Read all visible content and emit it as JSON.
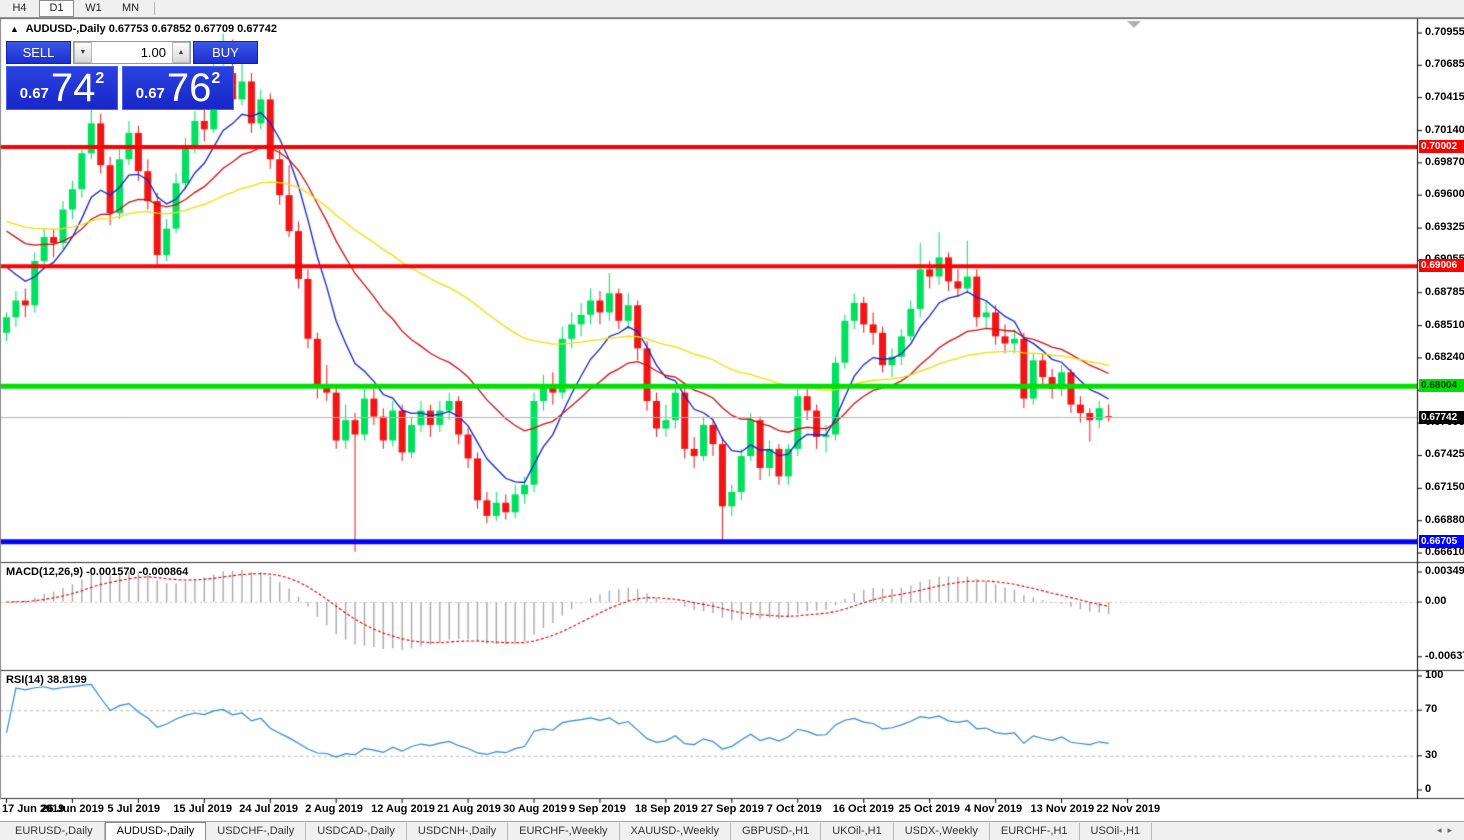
{
  "toolbar": {
    "timeframes": [
      {
        "label": "H4",
        "active": false
      },
      {
        "label": "D1",
        "active": true
      },
      {
        "label": "W1",
        "active": false
      },
      {
        "label": "MN",
        "active": false
      }
    ]
  },
  "title": {
    "collapse": "▲",
    "symbol": "AUDUSD-,Daily",
    "ohlc": "0.67753 0.67852 0.67709 0.67742"
  },
  "trade_panel": {
    "sell_label": "SELL",
    "buy_label": "BUY",
    "volume": "1.00",
    "spin_down": "▼",
    "spin_up": "▲",
    "sell_small": "0.67",
    "sell_big": "74",
    "sell_sup": "2",
    "buy_small": "0.67",
    "buy_big": "76",
    "buy_sup": "2"
  },
  "price_axis": {
    "ticks": [
      "0.70955",
      "0.70685",
      "0.70415",
      "0.70140",
      "0.69870",
      "0.69600",
      "0.69325",
      "0.69055",
      "0.68785",
      "0.68510",
      "0.68240",
      "0.67970",
      "0.67695",
      "0.67425",
      "0.67150",
      "0.66880",
      "0.66610"
    ],
    "badges": [
      {
        "value": "0.70002",
        "bg": "#ff0000",
        "fg": "#ffffff"
      },
      {
        "value": "0.69006",
        "bg": "#ff0000",
        "fg": "#ffffff"
      },
      {
        "value": "0.68004",
        "bg": "#00e000",
        "fg": "#003300"
      },
      {
        "value": "0.67742",
        "bg": "#000000",
        "fg": "#ffffff"
      },
      {
        "value": "0.66705",
        "bg": "#0000ff",
        "fg": "#ffffff"
      }
    ]
  },
  "levels": [
    {
      "price": 0.70002,
      "color": "#ff0000",
      "width": 4
    },
    {
      "price": 0.69006,
      "color": "#ff0000",
      "width": 4
    },
    {
      "price": 0.68004,
      "color": "#00e000",
      "width": 5
    },
    {
      "price": 0.66705,
      "color": "#0000ff",
      "width": 5
    }
  ],
  "current_price": 0.67742,
  "macd": {
    "label": "MACD(12,26,9) -0.001570 -0.000864",
    "fast": 12,
    "slow": 26,
    "signal": 9,
    "axis": [
      "0.00349",
      "0.00",
      "-0.00637"
    ]
  },
  "rsi": {
    "label": "RSI(14) 38.8199",
    "period": 14,
    "levels": [
      70,
      30
    ],
    "axis": [
      "100",
      "70",
      "30",
      "0"
    ]
  },
  "time_axis": {
    "labels": [
      "17 Jun 2019",
      "26 Jun 2019",
      "5 Jul 2019",
      "15 Jul 2019",
      "24 Jul 2019",
      "2 Aug 2019",
      "12 Aug 2019",
      "21 Aug 2019",
      "30 Aug 2019",
      "9 Sep 2019",
      "18 Sep 2019",
      "27 Sep 2019",
      "7 Oct 2019",
      "16 Oct 2019",
      "25 Oct 2019",
      "4 Nov 2019",
      "13 Nov 2019",
      "22 Nov 2019"
    ],
    "candles_per_tick": 7
  },
  "tabs": {
    "items": [
      {
        "label": "EURUSD-,Daily",
        "active": false
      },
      {
        "label": "AUDUSD-,Daily",
        "active": true
      },
      {
        "label": "USDCHF-,Daily",
        "active": false
      },
      {
        "label": "USDCAD-,Daily",
        "active": false
      },
      {
        "label": "USDCNH-,Daily",
        "active": false
      },
      {
        "label": "EURCHF-,Weekly",
        "active": false
      },
      {
        "label": "XAUUSD-,Weekly",
        "active": false
      },
      {
        "label": "GBPUSD-,H1",
        "active": false
      },
      {
        "label": "UKOil-,H1",
        "active": false
      },
      {
        "label": "USDX-,Weekly",
        "active": false
      },
      {
        "label": "EURCHF-,H1",
        "active": false
      },
      {
        "label": "USOil-,H1",
        "active": false
      }
    ],
    "scroll_left": "◂",
    "scroll_right": "▸"
  },
  "colors": {
    "up_candle": "#00e05f",
    "down_candle": "#f21515",
    "ma_fast": "#1122cc",
    "ma_mid": "#cc1111",
    "ma_slow": "#efe000",
    "macd_hist": "#a9a9a9",
    "macd_signal": "#dd0000",
    "rsi_line": "#2e86e0",
    "rsi_level": "#bbbbbb",
    "current_line": "#b4b4b4",
    "scroll_marker": "#b0b0b0"
  },
  "chart_data": {
    "type": "candlestick",
    "symbol": "AUDUSD-",
    "timeframe": "Daily",
    "moving_averages": [
      {
        "color_role": "ma_fast",
        "period": 8,
        "seed_offset": 0.0042
      },
      {
        "color_role": "ma_mid",
        "period": 21,
        "seed_offset": 0.0072
      },
      {
        "color_role": "ma_slow",
        "period": 55,
        "seed_offset": 0.008
      }
    ],
    "candles": [
      [
        0.6845,
        0.6862,
        0.6838,
        0.6858
      ],
      [
        0.6858,
        0.688,
        0.685,
        0.6872
      ],
      [
        0.6872,
        0.6882,
        0.6858,
        0.6868
      ],
      [
        0.6868,
        0.6912,
        0.6862,
        0.6905
      ],
      [
        0.6905,
        0.6932,
        0.6898,
        0.6925
      ],
      [
        0.6925,
        0.6932,
        0.6908,
        0.692
      ],
      [
        0.692,
        0.6955,
        0.6915,
        0.6948
      ],
      [
        0.6948,
        0.6972,
        0.694,
        0.6965
      ],
      [
        0.6965,
        0.7002,
        0.6958,
        0.6995
      ],
      [
        0.6995,
        0.7035,
        0.699,
        0.702
      ],
      [
        0.702,
        0.7028,
        0.6978,
        0.6985
      ],
      [
        0.6985,
        0.6992,
        0.6935,
        0.6945
      ],
      [
        0.6945,
        0.6998,
        0.694,
        0.699
      ],
      [
        0.699,
        0.7022,
        0.6985,
        0.7012
      ],
      [
        0.7012,
        0.7018,
        0.6972,
        0.698
      ],
      [
        0.698,
        0.699,
        0.6948,
        0.6955
      ],
      [
        0.6955,
        0.6962,
        0.6902,
        0.691
      ],
      [
        0.691,
        0.694,
        0.6905,
        0.6932
      ],
      [
        0.6932,
        0.6978,
        0.6928,
        0.697
      ],
      [
        0.697,
        0.7008,
        0.6965,
        0.7
      ],
      [
        0.7,
        0.703,
        0.6995,
        0.7022
      ],
      [
        0.7022,
        0.7032,
        0.7005,
        0.7015
      ],
      [
        0.7015,
        0.7082,
        0.7012,
        0.7048
      ],
      [
        0.7048,
        0.7095,
        0.704,
        0.7062
      ],
      [
        0.7062,
        0.709,
        0.7032,
        0.704
      ],
      [
        0.704,
        0.7075,
        0.7035,
        0.7055
      ],
      [
        0.7055,
        0.7062,
        0.7012,
        0.702
      ],
      [
        0.702,
        0.7048,
        0.7015,
        0.704
      ],
      [
        0.704,
        0.7045,
        0.6982,
        0.699
      ],
      [
        0.699,
        0.6998,
        0.6952,
        0.696
      ],
      [
        0.696,
        0.6985,
        0.6925,
        0.693
      ],
      [
        0.693,
        0.6938,
        0.6882,
        0.689
      ],
      [
        0.689,
        0.6898,
        0.6832,
        0.684
      ],
      [
        0.684,
        0.6845,
        0.679,
        0.68
      ],
      [
        0.68,
        0.6818,
        0.6788,
        0.6795
      ],
      [
        0.6795,
        0.68,
        0.6748,
        0.6755
      ],
      [
        0.6755,
        0.6785,
        0.6748,
        0.6772
      ],
      [
        0.6772,
        0.6778,
        0.6662,
        0.676
      ],
      [
        0.676,
        0.6798,
        0.6755,
        0.679
      ],
      [
        0.679,
        0.6798,
        0.6768,
        0.6775
      ],
      [
        0.6775,
        0.6782,
        0.6748,
        0.6755
      ],
      [
        0.6755,
        0.6788,
        0.675,
        0.678
      ],
      [
        0.678,
        0.6785,
        0.6738,
        0.6745
      ],
      [
        0.6745,
        0.6775,
        0.674,
        0.6768
      ],
      [
        0.6768,
        0.6788,
        0.6762,
        0.678
      ],
      [
        0.678,
        0.6785,
        0.6758,
        0.6768
      ],
      [
        0.6768,
        0.6788,
        0.6762,
        0.678
      ],
      [
        0.678,
        0.6795,
        0.6772,
        0.6788
      ],
      [
        0.6788,
        0.6792,
        0.6752,
        0.676
      ],
      [
        0.676,
        0.6765,
        0.6732,
        0.674
      ],
      [
        0.674,
        0.6745,
        0.6698,
        0.6705
      ],
      [
        0.6705,
        0.6712,
        0.6686,
        0.6692
      ],
      [
        0.6692,
        0.6712,
        0.6688,
        0.6703
      ],
      [
        0.6703,
        0.671,
        0.6689,
        0.6695
      ],
      [
        0.6695,
        0.6718,
        0.669,
        0.671
      ],
      [
        0.671,
        0.6725,
        0.6702,
        0.6718
      ],
      [
        0.6718,
        0.6795,
        0.6712,
        0.6788
      ],
      [
        0.6788,
        0.681,
        0.678,
        0.6802
      ],
      [
        0.6802,
        0.6812,
        0.6785,
        0.6795
      ],
      [
        0.6795,
        0.685,
        0.679,
        0.684
      ],
      [
        0.684,
        0.6862,
        0.6832,
        0.6852
      ],
      [
        0.6852,
        0.687,
        0.6842,
        0.686
      ],
      [
        0.686,
        0.6882,
        0.6852,
        0.6872
      ],
      [
        0.6872,
        0.688,
        0.6852,
        0.6862
      ],
      [
        0.6862,
        0.6895,
        0.6855,
        0.6878
      ],
      [
        0.6878,
        0.6882,
        0.6848,
        0.6855
      ],
      [
        0.6855,
        0.6878,
        0.6848,
        0.6868
      ],
      [
        0.6868,
        0.6872,
        0.6822,
        0.6832
      ],
      [
        0.6832,
        0.6838,
        0.678,
        0.6788
      ],
      [
        0.6788,
        0.6795,
        0.6758,
        0.6765
      ],
      [
        0.6765,
        0.6785,
        0.6758,
        0.6772
      ],
      [
        0.6772,
        0.6802,
        0.6765,
        0.6795
      ],
      [
        0.6795,
        0.68,
        0.674,
        0.6748
      ],
      [
        0.6748,
        0.6758,
        0.6732,
        0.6742
      ],
      [
        0.6742,
        0.6775,
        0.6738,
        0.6768
      ],
      [
        0.6768,
        0.6772,
        0.6742,
        0.6752
      ],
      [
        0.6752,
        0.6758,
        0.6671,
        0.67
      ],
      [
        0.67,
        0.6718,
        0.6692,
        0.6712
      ],
      [
        0.6712,
        0.6748,
        0.6705,
        0.6742
      ],
      [
        0.6742,
        0.6778,
        0.6738,
        0.6772
      ],
      [
        0.6772,
        0.6775,
        0.6722,
        0.6732
      ],
      [
        0.6732,
        0.6755,
        0.6725,
        0.6748
      ],
      [
        0.6748,
        0.6752,
        0.6718,
        0.6725
      ],
      [
        0.6725,
        0.6752,
        0.6718,
        0.6748
      ],
      [
        0.6748,
        0.6798,
        0.6742,
        0.6792
      ],
      [
        0.6792,
        0.6798,
        0.6772,
        0.678
      ],
      [
        0.678,
        0.6785,
        0.6748,
        0.6758
      ],
      [
        0.6758,
        0.6768,
        0.6745,
        0.676
      ],
      [
        0.676,
        0.6825,
        0.6755,
        0.682
      ],
      [
        0.682,
        0.686,
        0.6815,
        0.6855
      ],
      [
        0.6855,
        0.6878,
        0.6848,
        0.687
      ],
      [
        0.687,
        0.6875,
        0.6845,
        0.6852
      ],
      [
        0.6852,
        0.6862,
        0.6835,
        0.6845
      ],
      [
        0.6845,
        0.685,
        0.6812,
        0.6818
      ],
      [
        0.6818,
        0.6832,
        0.6808,
        0.6825
      ],
      [
        0.6825,
        0.6848,
        0.6818,
        0.6842
      ],
      [
        0.6842,
        0.6872,
        0.6838,
        0.6865
      ],
      [
        0.6865,
        0.692,
        0.6858,
        0.6898
      ],
      [
        0.6898,
        0.6905,
        0.6882,
        0.6892
      ],
      [
        0.6892,
        0.6929,
        0.6885,
        0.6908
      ],
      [
        0.6908,
        0.6912,
        0.688,
        0.6888
      ],
      [
        0.6888,
        0.6898,
        0.6875,
        0.6882
      ],
      [
        0.6882,
        0.6922,
        0.6878,
        0.6892
      ],
      [
        0.6892,
        0.6898,
        0.685,
        0.6858
      ],
      [
        0.6858,
        0.6872,
        0.6848,
        0.6862
      ],
      [
        0.6862,
        0.6868,
        0.6835,
        0.6842
      ],
      [
        0.6842,
        0.6852,
        0.6828,
        0.6836
      ],
      [
        0.6836,
        0.6848,
        0.6828,
        0.684
      ],
      [
        0.684,
        0.6845,
        0.6782,
        0.679
      ],
      [
        0.679,
        0.6828,
        0.6785,
        0.6822
      ],
      [
        0.6822,
        0.6828,
        0.6798,
        0.6808
      ],
      [
        0.6808,
        0.6815,
        0.679,
        0.6798
      ],
      [
        0.6798,
        0.6818,
        0.6792,
        0.6812
      ],
      [
        0.6812,
        0.6815,
        0.6778,
        0.6785
      ],
      [
        0.6785,
        0.6792,
        0.677,
        0.6778
      ],
      [
        0.6778,
        0.6782,
        0.6754,
        0.6772
      ],
      [
        0.6772,
        0.6788,
        0.6765,
        0.6782
      ],
      [
        0.67753,
        0.67852,
        0.67709,
        0.67742
      ]
    ]
  }
}
